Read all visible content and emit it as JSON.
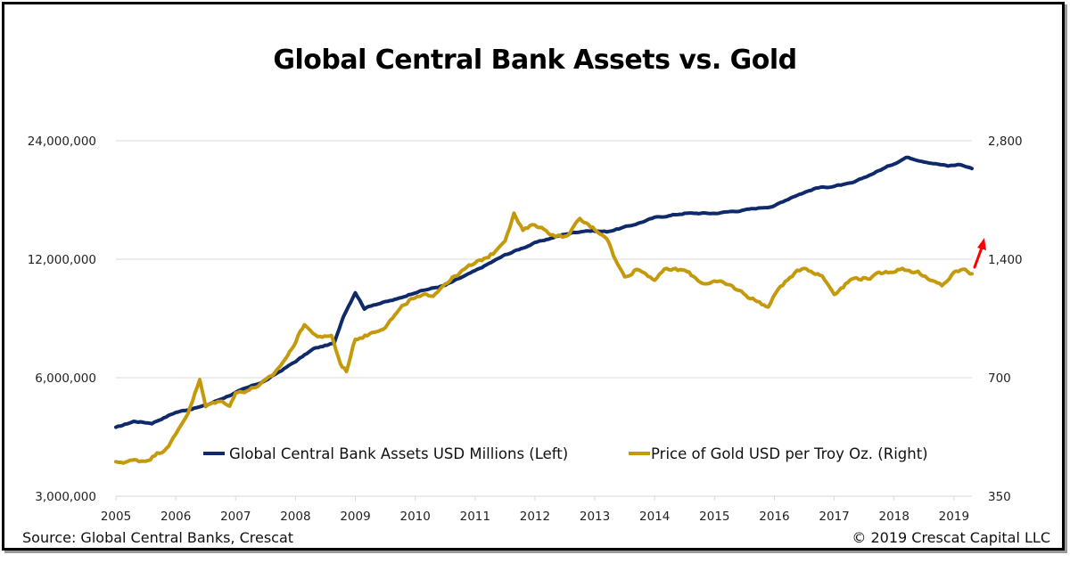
{
  "chart_data": {
    "type": "line",
    "title": "Global Central Bank Assets vs. Gold",
    "xlabel": "",
    "ylabel_left": "",
    "ylabel_right": "",
    "x_ticks": [
      "2005",
      "2006",
      "2007",
      "2008",
      "2009",
      "2010",
      "2011",
      "2012",
      "2013",
      "2014",
      "2015",
      "2016",
      "2017",
      "2018",
      "2019"
    ],
    "xlim": [
      2005,
      2019.3
    ],
    "y_left": {
      "scale": "log2",
      "ylim": [
        3000000,
        24000000
      ],
      "ticks": [
        3000000,
        6000000,
        12000000,
        24000000
      ],
      "tick_labels": [
        "3,000,000",
        "6,000,000",
        "12,000,000",
        "24,000,000"
      ]
    },
    "y_right": {
      "scale": "log2",
      "ylim": [
        350,
        2800
      ],
      "ticks": [
        350,
        700,
        1400,
        2800
      ],
      "tick_labels": [
        "350",
        "700",
        "1,400",
        "2,800"
      ]
    },
    "grid": true,
    "legend_position": "bottom-inside",
    "series": [
      {
        "name": "Global Central Bank Assets USD Millions (Left)",
        "axis": "left",
        "color": "#0F2A6B",
        "points": [
          [
            2005.0,
            4480000
          ],
          [
            2005.3,
            4650000
          ],
          [
            2005.6,
            4600000
          ],
          [
            2006.0,
            4900000
          ],
          [
            2006.5,
            5100000
          ],
          [
            2007.0,
            5500000
          ],
          [
            2007.5,
            5900000
          ],
          [
            2008.0,
            6600000
          ],
          [
            2008.3,
            7100000
          ],
          [
            2008.65,
            7350000
          ],
          [
            2008.8,
            8600000
          ],
          [
            2009.0,
            9900000
          ],
          [
            2009.15,
            9000000
          ],
          [
            2009.3,
            9200000
          ],
          [
            2009.7,
            9500000
          ],
          [
            2010.0,
            9900000
          ],
          [
            2010.5,
            10300000
          ],
          [
            2011.0,
            11200000
          ],
          [
            2011.5,
            12300000
          ],
          [
            2012.0,
            13200000
          ],
          [
            2012.5,
            13900000
          ],
          [
            2012.85,
            14200000
          ],
          [
            2013.2,
            14100000
          ],
          [
            2013.6,
            14600000
          ],
          [
            2014.0,
            15300000
          ],
          [
            2014.5,
            15700000
          ],
          [
            2015.0,
            15700000
          ],
          [
            2015.5,
            16000000
          ],
          [
            2016.0,
            16400000
          ],
          [
            2016.3,
            17300000
          ],
          [
            2016.7,
            18200000
          ],
          [
            2017.0,
            18400000
          ],
          [
            2017.3,
            18700000
          ],
          [
            2017.7,
            20000000
          ],
          [
            2018.0,
            21000000
          ],
          [
            2018.2,
            21800000
          ],
          [
            2018.5,
            21300000
          ],
          [
            2018.9,
            20700000
          ],
          [
            2019.1,
            20900000
          ],
          [
            2019.3,
            20400000
          ]
        ]
      },
      {
        "name": "Price of Gold USD per Troy Oz. (Right)",
        "axis": "right",
        "color": "#C49A0C",
        "points": [
          [
            2005.0,
            425
          ],
          [
            2005.2,
            430
          ],
          [
            2005.5,
            432
          ],
          [
            2005.8,
            460
          ],
          [
            2006.0,
            500
          ],
          [
            2006.2,
            570
          ],
          [
            2006.4,
            690
          ],
          [
            2006.5,
            590
          ],
          [
            2006.7,
            610
          ],
          [
            2006.9,
            600
          ],
          [
            2007.0,
            640
          ],
          [
            2007.3,
            660
          ],
          [
            2007.6,
            700
          ],
          [
            2007.9,
            810
          ],
          [
            2008.15,
            960
          ],
          [
            2008.25,
            920
          ],
          [
            2008.45,
            880
          ],
          [
            2008.6,
            900
          ],
          [
            2008.75,
            760
          ],
          [
            2008.85,
            730
          ],
          [
            2009.0,
            880
          ],
          [
            2009.2,
            900
          ],
          [
            2009.5,
            950
          ],
          [
            2009.9,
            1100
          ],
          [
            2010.0,
            1110
          ],
          [
            2010.3,
            1140
          ],
          [
            2010.5,
            1220
          ],
          [
            2010.9,
            1340
          ],
          [
            2011.0,
            1360
          ],
          [
            2011.3,
            1450
          ],
          [
            2011.5,
            1580
          ],
          [
            2011.65,
            1830
          ],
          [
            2011.8,
            1650
          ],
          [
            2012.0,
            1720
          ],
          [
            2012.3,
            1620
          ],
          [
            2012.5,
            1590
          ],
          [
            2012.75,
            1760
          ],
          [
            2013.0,
            1670
          ],
          [
            2013.2,
            1600
          ],
          [
            2013.35,
            1390
          ],
          [
            2013.5,
            1260
          ],
          [
            2013.7,
            1330
          ],
          [
            2014.0,
            1250
          ],
          [
            2014.2,
            1320
          ],
          [
            2014.5,
            1310
          ],
          [
            2014.8,
            1220
          ],
          [
            2015.0,
            1230
          ],
          [
            2015.3,
            1190
          ],
          [
            2015.6,
            1120
          ],
          [
            2015.9,
            1060
          ],
          [
            2016.1,
            1200
          ],
          [
            2016.5,
            1340
          ],
          [
            2016.8,
            1270
          ],
          [
            2017.0,
            1150
          ],
          [
            2017.3,
            1250
          ],
          [
            2017.6,
            1260
          ],
          [
            2017.9,
            1300
          ],
          [
            2018.1,
            1330
          ],
          [
            2018.4,
            1300
          ],
          [
            2018.6,
            1230
          ],
          [
            2018.8,
            1200
          ],
          [
            2019.0,
            1290
          ],
          [
            2019.15,
            1320
          ],
          [
            2019.3,
            1285
          ]
        ]
      }
    ],
    "annotations": [
      {
        "type": "arrow",
        "color": "#FF0000",
        "direction": "up-right"
      }
    ]
  },
  "footer": {
    "source": "Source: Global Central Banks, Crescat",
    "copyright": "© 2019 Crescat Capital LLC"
  }
}
